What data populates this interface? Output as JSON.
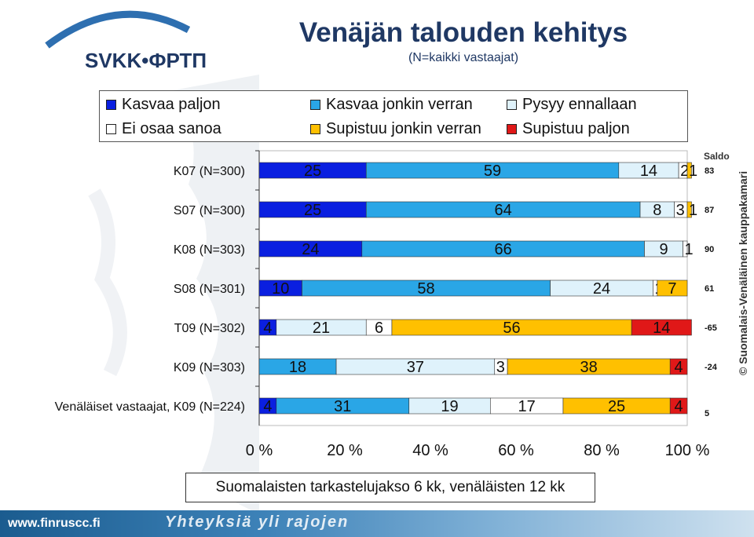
{
  "header": {
    "logo_text": "SVKK•ФРТП",
    "title": "Venäjän talouden kehitys",
    "subtitle": "(N=kaikki vastaajat)"
  },
  "legend": [
    {
      "label": "Kasvaa paljon",
      "color": "#0a1fe0"
    },
    {
      "label": "Kasvaa jonkin verran",
      "color": "#2aa6e6"
    },
    {
      "label": "Pysyy ennallaan",
      "color": "#dff2fb"
    },
    {
      "label": "Ei osaa sanoa",
      "color": "#ffffff"
    },
    {
      "label": "Supistuu jonkin verran",
      "color": "#ffc000"
    },
    {
      "label": "Supistuu paljon",
      "color": "#e01818"
    }
  ],
  "chart_data": {
    "type": "bar",
    "orientation": "horizontal",
    "stacked": true,
    "categories": [
      "K07 (N=300)",
      "S07 (N=300)",
      "K08 (N=303)",
      "S08 (N=301)",
      "T09 (N=302)",
      "K09 (N=303)",
      "Venäläiset vastaajat, K09 (N=224)"
    ],
    "series": [
      {
        "name": "Kasvaa paljon",
        "color": "#0a1fe0",
        "values": [
          25,
          25,
          24,
          10,
          4,
          0,
          4
        ]
      },
      {
        "name": "Kasvaa jonkin verran",
        "color": "#2aa6e6",
        "values": [
          59,
          64,
          66,
          58,
          0,
          18,
          31
        ]
      },
      {
        "name": "Pysyy ennallaan",
        "color": "#dff2fb",
        "values": [
          14,
          8,
          9,
          24,
          21,
          37,
          19
        ]
      },
      {
        "name": "Ei osaa sanoa",
        "color": "#ffffff",
        "values": [
          2,
          3,
          1,
          1,
          6,
          3,
          17
        ]
      },
      {
        "name": "Supistuu jonkin verran",
        "color": "#ffc000",
        "values": [
          1,
          1,
          0,
          7,
          56,
          38,
          25
        ]
      },
      {
        "name": "Supistuu paljon",
        "color": "#e01818",
        "values": [
          0,
          0,
          0,
          0,
          14,
          4,
          4
        ]
      }
    ],
    "saldo_label": "Saldo",
    "saldo": [
      83,
      87,
      90,
      61,
      -65,
      -24,
      5
    ],
    "x_ticks": [
      "0 %",
      "20 %",
      "40 %",
      "60 %",
      "80 %",
      "100 %"
    ],
    "xlim": [
      0,
      100
    ],
    "legend_position": "top"
  },
  "note": "Suomalaisten tarkastelujakso 6 kk, venäläisten 12 kk",
  "footer": {
    "url": "www.finruscc.fi",
    "slogan": "Yhteyksiä yli rajojen"
  },
  "side_credit": "© Suomalais-Venäläinen kauppakamari"
}
